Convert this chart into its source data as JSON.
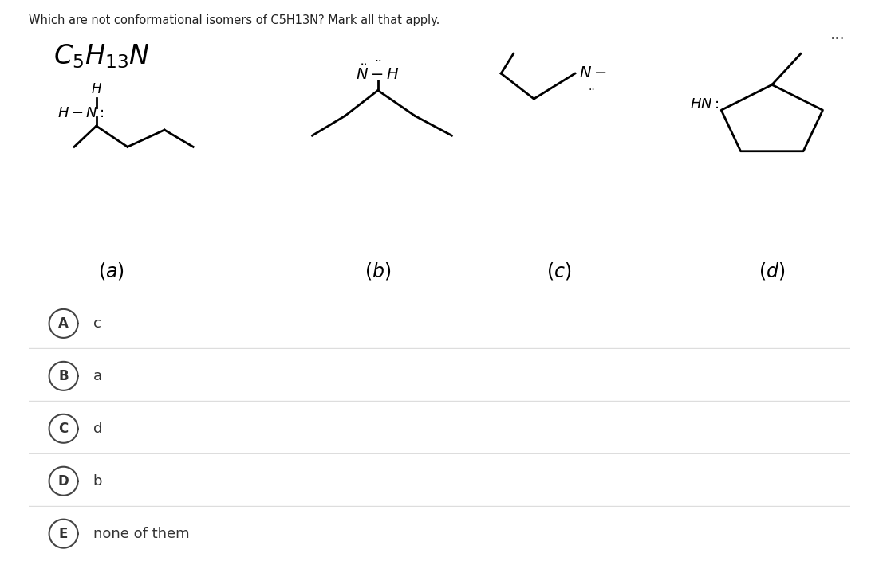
{
  "question_text": "Which are not conformational isomers of C5H13N? Mark all that apply.",
  "background_color": "#f0f0f0",
  "white_bg": "#ffffff",
  "box_bg": "#f0f0f0",
  "options": [
    {
      "letter": "A",
      "text": "c"
    },
    {
      "letter": "B",
      "text": "a"
    },
    {
      "letter": "C",
      "text": "d"
    },
    {
      "letter": "D",
      "text": "b"
    },
    {
      "letter": "E",
      "text": "none of them"
    }
  ],
  "option_row_colors": [
    "#f5f5f5",
    "#f5f5f5",
    "#f5f5f5",
    "#f5f5f5",
    "#f5f5f5"
  ],
  "separator_color": "#dddddd",
  "fig_width": 11.02,
  "fig_height": 7.09,
  "dpi": 100
}
